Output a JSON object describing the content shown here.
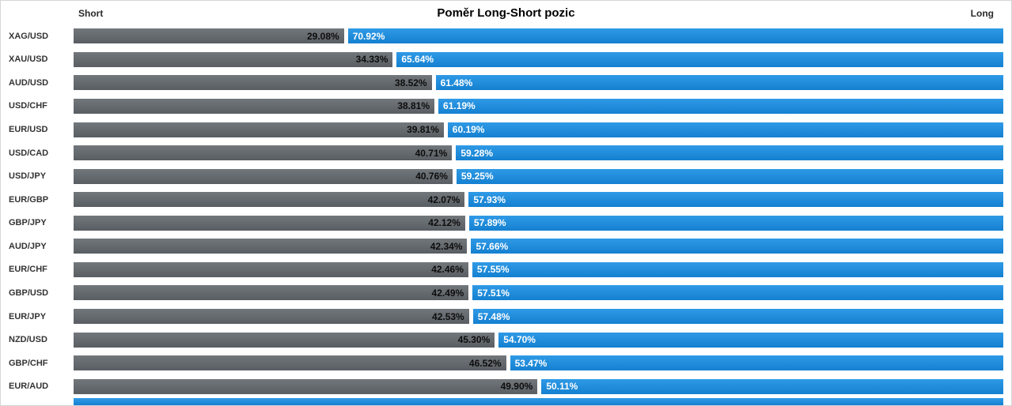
{
  "header": {
    "short_label": "Short",
    "title": "Poměr Long-Short pozic",
    "long_label": "Long"
  },
  "chart_data": {
    "type": "bar",
    "orientation": "horizontal",
    "stacked": true,
    "title": "Poměr Long-Short pozic",
    "value_suffix": "%",
    "xlim": [
      0,
      100
    ],
    "categories": [
      "XAG/USD",
      "XAU/USD",
      "AUD/USD",
      "USD/CHF",
      "EUR/USD",
      "USD/CAD",
      "USD/JPY",
      "EUR/GBP",
      "GBP/JPY",
      "AUD/JPY",
      "EUR/CHF",
      "GBP/USD",
      "EUR/JPY",
      "NZD/USD",
      "GBP/CHF",
      "EUR/AUD"
    ],
    "series": [
      {
        "name": "Short",
        "color": "#63686d",
        "values": [
          29.08,
          34.33,
          38.52,
          38.81,
          39.81,
          40.71,
          40.76,
          42.07,
          42.12,
          42.34,
          42.46,
          42.49,
          42.53,
          45.3,
          46.52,
          49.9
        ]
      },
      {
        "name": "Long",
        "color": "#1e8cdb",
        "values": [
          70.92,
          65.64,
          61.48,
          61.19,
          60.19,
          59.28,
          59.25,
          57.93,
          57.89,
          57.66,
          57.55,
          57.51,
          57.48,
          54.7,
          53.47,
          50.11
        ]
      }
    ],
    "legend": "none",
    "grid": false
  },
  "colors": {
    "short_top": "#72777c",
    "short_bottom": "#595e63",
    "long_top": "#2f9ae6",
    "long_bottom": "#1480d0"
  }
}
